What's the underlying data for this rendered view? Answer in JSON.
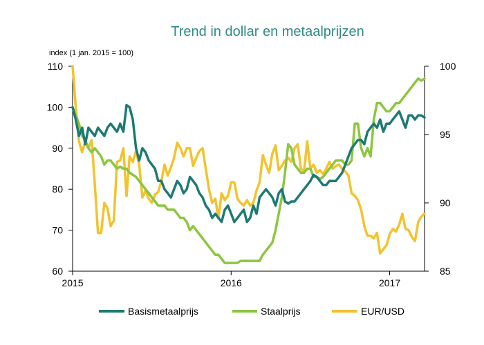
{
  "chart_data": {
    "type": "line",
    "title": "Trend in dollar en metaalprijzen",
    "ylabel": "index (1 jan. 2015 = 100)",
    "x_ticks": [
      "2015",
      "2016",
      "2017"
    ],
    "x_range": [
      2015.0,
      2017.22
    ],
    "y_left": {
      "lim": [
        60,
        110
      ],
      "ticks": [
        "60",
        "70",
        "80",
        "90",
        "100",
        "110"
      ]
    },
    "y_right": {
      "lim": [
        85,
        100
      ],
      "ticks": [
        "85",
        "90",
        "95",
        "100"
      ]
    },
    "grid": false,
    "legend_position": "bottom",
    "series": [
      {
        "name": "Basismetaalprijs",
        "axis": "left",
        "color": "#1d7a73",
        "x": [
          2015.0,
          2015.02,
          2015.04,
          2015.06,
          2015.08,
          2015.1,
          2015.12,
          2015.14,
          2015.16,
          2015.18,
          2015.2,
          2015.22,
          2015.24,
          2015.26,
          2015.28,
          2015.3,
          2015.32,
          2015.34,
          2015.36,
          2015.38,
          2015.4,
          2015.42,
          2015.44,
          2015.46,
          2015.48,
          2015.5,
          2015.52,
          2015.54,
          2015.56,
          2015.58,
          2015.6,
          2015.62,
          2015.64,
          2015.66,
          2015.68,
          2015.7,
          2015.72,
          2015.74,
          2015.76,
          2015.78,
          2015.8,
          2015.82,
          2015.84,
          2015.86,
          2015.88,
          2015.9,
          2015.92,
          2015.94,
          2015.96,
          2015.98,
          2016.0,
          2016.02,
          2016.04,
          2016.06,
          2016.08,
          2016.1,
          2016.12,
          2016.14,
          2016.16,
          2016.18,
          2016.2,
          2016.22,
          2016.24,
          2016.26,
          2016.28,
          2016.3,
          2016.32,
          2016.34,
          2016.36,
          2016.38,
          2016.4,
          2016.42,
          2016.44,
          2016.46,
          2016.48,
          2016.5,
          2016.52,
          2016.54,
          2016.56,
          2016.58,
          2016.6,
          2016.62,
          2016.64,
          2016.66,
          2016.68,
          2016.7,
          2016.72,
          2016.74,
          2016.76,
          2016.78,
          2016.8,
          2016.82,
          2016.84,
          2016.86,
          2016.88,
          2016.9,
          2016.92,
          2016.94,
          2016.96,
          2016.98,
          2017.0,
          2017.02,
          2017.04,
          2017.06,
          2017.08,
          2017.1,
          2017.12,
          2017.14,
          2017.16,
          2017.18,
          2017.2,
          2017.22
        ],
        "values": [
          100,
          97,
          93,
          95,
          91,
          95,
          94,
          93,
          95,
          94,
          93,
          95,
          96,
          95,
          94,
          96,
          94,
          100.5,
          100,
          97,
          90,
          87,
          90,
          89,
          87,
          86,
          85,
          82,
          82,
          80,
          79,
          78,
          80,
          82,
          81,
          79,
          80,
          83,
          82,
          81,
          79,
          78,
          76,
          75,
          73,
          74,
          73,
          72,
          75,
          76,
          74,
          72,
          73,
          74,
          75,
          72,
          73,
          76,
          74,
          78,
          79,
          80,
          79,
          78,
          76,
          79,
          80,
          77,
          76.5,
          77,
          77,
          78,
          79,
          80,
          81,
          82,
          83.5,
          83,
          82,
          81,
          81,
          82,
          82,
          82,
          83,
          84,
          86,
          88,
          90,
          91,
          92,
          92,
          91,
          94,
          95,
          96,
          95,
          97,
          94,
          96,
          96,
          97,
          98,
          99,
          97,
          95,
          98,
          98,
          97,
          98,
          98,
          97.5
        ]
      },
      {
        "name": "Staalprijs",
        "axis": "left",
        "color": "#8cc63f",
        "x": [
          2015.0,
          2015.02,
          2015.04,
          2015.06,
          2015.08,
          2015.1,
          2015.12,
          2015.14,
          2015.16,
          2015.18,
          2015.2,
          2015.22,
          2015.24,
          2015.26,
          2015.28,
          2015.3,
          2015.32,
          2015.34,
          2015.36,
          2015.38,
          2015.4,
          2015.42,
          2015.44,
          2015.46,
          2015.48,
          2015.5,
          2015.52,
          2015.54,
          2015.56,
          2015.58,
          2015.6,
          2015.62,
          2015.64,
          2015.66,
          2015.68,
          2015.7,
          2015.72,
          2015.74,
          2015.76,
          2015.78,
          2015.8,
          2015.82,
          2015.84,
          2015.86,
          2015.88,
          2015.9,
          2015.92,
          2015.94,
          2015.96,
          2015.98,
          2016.0,
          2016.02,
          2016.04,
          2016.06,
          2016.08,
          2016.1,
          2016.12,
          2016.14,
          2016.16,
          2016.18,
          2016.2,
          2016.22,
          2016.24,
          2016.26,
          2016.28,
          2016.3,
          2016.32,
          2016.34,
          2016.36,
          2016.38,
          2016.4,
          2016.42,
          2016.44,
          2016.46,
          2016.48,
          2016.5,
          2016.52,
          2016.54,
          2016.56,
          2016.58,
          2016.6,
          2016.62,
          2016.64,
          2016.66,
          2016.68,
          2016.7,
          2016.72,
          2016.74,
          2016.76,
          2016.78,
          2016.8,
          2016.82,
          2016.84,
          2016.86,
          2016.88,
          2016.9,
          2016.92,
          2016.94,
          2016.96,
          2016.98,
          2017.0,
          2017.02,
          2017.04,
          2017.06,
          2017.08,
          2017.1,
          2017.12,
          2017.14,
          2017.16,
          2017.18,
          2017.2,
          2017.22
        ],
        "values": [
          100,
          98,
          96,
          93,
          92,
          90,
          89,
          90,
          89,
          88,
          86,
          87,
          87,
          86,
          85,
          85.5,
          85,
          85,
          84,
          83.5,
          83,
          82,
          81,
          80,
          79,
          78,
          77,
          76,
          76,
          76,
          75,
          75,
          75,
          74,
          73,
          73,
          72,
          70,
          71,
          70,
          69,
          68,
          67,
          66,
          65,
          64,
          64,
          63,
          62,
          62,
          62,
          62,
          62,
          62.5,
          62.5,
          62.5,
          62.5,
          62.5,
          62.5,
          62.5,
          64,
          65,
          66,
          67,
          70,
          74,
          78,
          84,
          91,
          90,
          86,
          85,
          84,
          84,
          85,
          85,
          83,
          83,
          82.5,
          83,
          84,
          85,
          86,
          87,
          87,
          87,
          86,
          86,
          87,
          96,
          96,
          90,
          88,
          90,
          88,
          97,
          101,
          101,
          100,
          99,
          99,
          100,
          101,
          101,
          102,
          103,
          104,
          105,
          106,
          107,
          106.5,
          107
        ]
      },
      {
        "name": "EUR/USD",
        "axis": "right",
        "color": "#f2c32e",
        "x": [
          2015.0,
          2015.02,
          2015.04,
          2015.06,
          2015.08,
          2015.1,
          2015.12,
          2015.14,
          2015.16,
          2015.18,
          2015.2,
          2015.22,
          2015.24,
          2015.26,
          2015.28,
          2015.3,
          2015.32,
          2015.34,
          2015.36,
          2015.38,
          2015.4,
          2015.42,
          2015.44,
          2015.46,
          2015.48,
          2015.5,
          2015.52,
          2015.54,
          2015.56,
          2015.58,
          2015.6,
          2015.62,
          2015.64,
          2015.66,
          2015.68,
          2015.7,
          2015.72,
          2015.74,
          2015.76,
          2015.78,
          2015.8,
          2015.82,
          2015.84,
          2015.86,
          2015.88,
          2015.9,
          2015.92,
          2015.94,
          2015.96,
          2015.98,
          2016.0,
          2016.02,
          2016.04,
          2016.06,
          2016.08,
          2016.1,
          2016.12,
          2016.14,
          2016.16,
          2016.18,
          2016.2,
          2016.22,
          2016.24,
          2016.26,
          2016.28,
          2016.3,
          2016.32,
          2016.34,
          2016.36,
          2016.38,
          2016.4,
          2016.42,
          2016.44,
          2016.46,
          2016.48,
          2016.5,
          2016.52,
          2016.54,
          2016.56,
          2016.58,
          2016.6,
          2016.62,
          2016.64,
          2016.66,
          2016.68,
          2016.7,
          2016.72,
          2016.74,
          2016.76,
          2016.78,
          2016.8,
          2016.82,
          2016.84,
          2016.86,
          2016.88,
          2016.9,
          2016.92,
          2016.94,
          2016.96,
          2016.98,
          2017.0,
          2017.02,
          2017.04,
          2017.06,
          2017.08,
          2017.1,
          2017.12,
          2017.14,
          2017.16,
          2017.18,
          2017.2,
          2017.22
        ],
        "values": [
          100,
          97,
          94.5,
          93.7,
          94.5,
          94,
          94.6,
          91.4,
          87.8,
          87.8,
          90,
          89.6,
          88.3,
          88.7,
          93,
          93.1,
          94,
          90.5,
          93.4,
          93,
          93.8,
          92.8,
          90.4,
          90.9,
          90.3,
          90,
          90.6,
          90.8,
          91.6,
          92.8,
          92,
          92.6,
          93.3,
          94.4,
          94,
          93.4,
          94,
          94,
          92.7,
          93.3,
          93.8,
          94,
          92.5,
          91,
          90,
          90.3,
          88.9,
          90.7,
          90.2,
          90.5,
          91.5,
          91.5,
          90.3,
          90,
          89.8,
          90.2,
          89.8,
          90,
          90.9,
          91.5,
          93.5,
          92.8,
          92.2,
          93.6,
          94.2,
          92.4,
          92.7,
          93.1,
          93.3,
          93,
          94,
          94.3,
          92.5,
          92.3,
          94.5,
          92.5,
          92.8,
          92.2,
          92.4,
          92.1,
          92.5,
          93,
          92.5,
          92.7,
          92.8,
          92.5,
          92.3,
          92,
          90.7,
          90.5,
          90.2,
          89.5,
          88.3,
          87.6,
          87.6,
          87.4,
          87.8,
          86.3,
          86.6,
          86.9,
          87.7,
          88.1,
          87.9,
          88.4,
          89.2,
          88.1,
          88,
          87.5,
          87.2,
          88.6,
          89,
          89.2
        ]
      }
    ]
  }
}
